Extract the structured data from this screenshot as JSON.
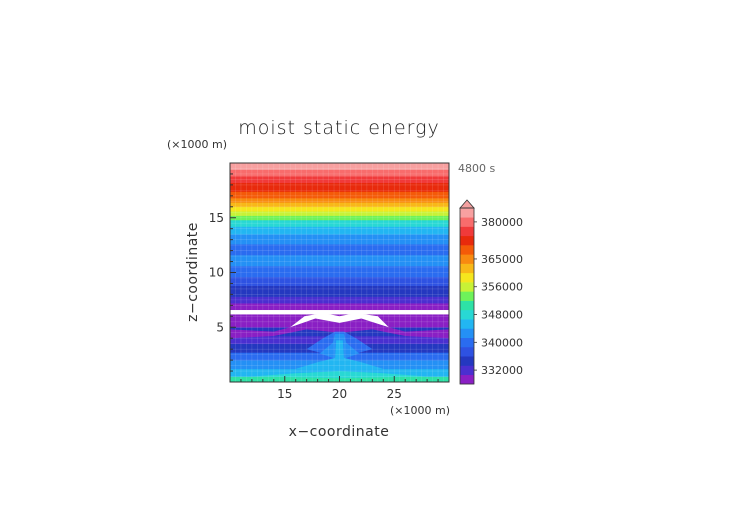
{
  "chart_data": {
    "type": "heatmap",
    "title": "moist static energy",
    "time_label": "4800 s",
    "xlabel": "x−coordinate",
    "ylabel": "z−coordinate",
    "x_unit": "(×1000 m)",
    "y_unit": "(×1000 m)",
    "xlim": [
      10,
      30
    ],
    "ylim": [
      0,
      20
    ],
    "x_ticks": [
      15,
      20,
      25
    ],
    "y_ticks": [
      5,
      10,
      15
    ],
    "colorbar": {
      "colors": [
        "#8a1fc4",
        "#4a2fd0",
        "#2438c0",
        "#2e52e2",
        "#2a6cf0",
        "#2490f5",
        "#22b6f2",
        "#28d8d4",
        "#2ee2a6",
        "#6ef25a",
        "#c8f236",
        "#f5e61e",
        "#f8b818",
        "#f88a10",
        "#f45a08",
        "#e82a0c",
        "#f03a3a",
        "#f86c6c",
        "#f8a0a0"
      ],
      "extend_top_color": "#f4a0a0",
      "labels": [
        "332000",
        "340000",
        "348000",
        "356000",
        "365000",
        "380000"
      ],
      "label_levels": [
        1.5,
        4.5,
        7.5,
        10.5,
        13.5,
        17.5
      ]
    },
    "bands": [
      {
        "z0": 0.0,
        "z1": 0.5,
        "color": "#2ee2a6"
      },
      {
        "z0": 0.5,
        "z1": 1.2,
        "color": "#22b6f2"
      },
      {
        "z0": 1.2,
        "z1": 2.0,
        "color": "#2490f5"
      },
      {
        "z0": 2.0,
        "z1": 2.7,
        "color": "#2a6cf0"
      },
      {
        "z0": 2.7,
        "z1": 3.5,
        "color": "#2438c0"
      },
      {
        "z0": 3.5,
        "z1": 4.2,
        "color": "#4a2fd0"
      },
      {
        "z0": 4.2,
        "z1": 5.0,
        "color": "#2438c0"
      },
      {
        "z0": 5.0,
        "z1": 6.2,
        "color": "#8a1fc4"
      },
      {
        "z0": 6.2,
        "z1": 6.6,
        "color": "#ffffff"
      },
      {
        "z0": 6.6,
        "z1": 7.2,
        "color": "#8a1fc4"
      },
      {
        "z0": 7.2,
        "z1": 7.8,
        "color": "#4a2fd0"
      },
      {
        "z0": 7.8,
        "z1": 8.8,
        "color": "#2438c0"
      },
      {
        "z0": 8.8,
        "z1": 9.6,
        "color": "#2e52e2"
      },
      {
        "z0": 9.6,
        "z1": 10.6,
        "color": "#2a6cf0"
      },
      {
        "z0": 10.6,
        "z1": 11.6,
        "color": "#2490f5"
      },
      {
        "z0": 11.6,
        "z1": 12.6,
        "color": "#2a6cf0"
      },
      {
        "z0": 12.6,
        "z1": 13.5,
        "color": "#2490f5"
      },
      {
        "z0": 13.5,
        "z1": 14.2,
        "color": "#22b6f2"
      },
      {
        "z0": 14.2,
        "z1": 14.8,
        "color": "#28d8d4"
      },
      {
        "z0": 14.8,
        "z1": 15.2,
        "color": "#6ef25a"
      },
      {
        "z0": 15.2,
        "z1": 15.6,
        "color": "#c8f236"
      },
      {
        "z0": 15.6,
        "z1": 16.0,
        "color": "#f5e61e"
      },
      {
        "z0": 16.0,
        "z1": 16.4,
        "color": "#f8b818"
      },
      {
        "z0": 16.4,
        "z1": 16.8,
        "color": "#f88a10"
      },
      {
        "z0": 16.8,
        "z1": 17.4,
        "color": "#f45a08"
      },
      {
        "z0": 17.4,
        "z1": 18.2,
        "color": "#e82a0c"
      },
      {
        "z0": 18.2,
        "z1": 18.8,
        "color": "#f03a3a"
      },
      {
        "z0": 18.8,
        "z1": 19.4,
        "color": "#f86c6c"
      },
      {
        "z0": 19.4,
        "z1": 20.0,
        "color": "#f8a0a0"
      }
    ],
    "plume": [
      {
        "color": "#ffffff",
        "outline": [
          [
            15.5,
            5.0
          ],
          [
            16.8,
            6.0
          ],
          [
            18.5,
            6.3
          ],
          [
            20.0,
            6.0
          ],
          [
            21.5,
            6.3
          ],
          [
            23.5,
            6.0
          ],
          [
            24.5,
            5.0
          ],
          [
            22.0,
            5.8
          ],
          [
            20.0,
            5.4
          ],
          [
            17.8,
            5.8
          ]
        ]
      },
      {
        "color": "#8a1fc4",
        "outline": [
          [
            10.0,
            4.8
          ],
          [
            14.0,
            4.6
          ],
          [
            17.0,
            5.4
          ],
          [
            20.0,
            5.3
          ],
          [
            23.0,
            5.4
          ],
          [
            26.0,
            4.6
          ],
          [
            30.0,
            4.8
          ],
          [
            30.0,
            4.0
          ],
          [
            26.0,
            4.2
          ],
          [
            23.0,
            4.8
          ],
          [
            20.0,
            4.5
          ],
          [
            17.0,
            4.8
          ],
          [
            14.0,
            4.2
          ],
          [
            10.0,
            4.0
          ]
        ]
      },
      {
        "color": "#2a6cf0",
        "outline": [
          [
            17.0,
            3.0
          ],
          [
            18.5,
            4.0
          ],
          [
            19.6,
            4.6
          ],
          [
            20.4,
            4.6
          ],
          [
            21.5,
            4.0
          ],
          [
            23.0,
            3.0
          ],
          [
            21.5,
            2.6
          ],
          [
            20.0,
            2.5
          ],
          [
            18.5,
            2.6
          ]
        ]
      },
      {
        "color": "#2490f5",
        "outline": [
          [
            18.2,
            2.6
          ],
          [
            19.4,
            3.6
          ],
          [
            19.6,
            4.4
          ],
          [
            20.4,
            4.4
          ],
          [
            20.6,
            3.6
          ],
          [
            21.8,
            2.6
          ],
          [
            20.0,
            2.0
          ]
        ]
      },
      {
        "color": "#22b6f2",
        "outline": [
          [
            16.0,
            1.2
          ],
          [
            18.0,
            1.8
          ],
          [
            19.6,
            2.2
          ],
          [
            19.7,
            3.8
          ],
          [
            20.3,
            3.8
          ],
          [
            20.4,
            2.2
          ],
          [
            22.0,
            1.8
          ],
          [
            24.0,
            1.2
          ],
          [
            20.0,
            0.9
          ]
        ]
      },
      {
        "color": "#28d8d4",
        "outline": [
          [
            12.0,
            0.5
          ],
          [
            16.0,
            0.8
          ],
          [
            20.0,
            1.0
          ],
          [
            24.0,
            0.8
          ],
          [
            28.0,
            0.5
          ],
          [
            20.0,
            0.35
          ]
        ]
      }
    ]
  }
}
